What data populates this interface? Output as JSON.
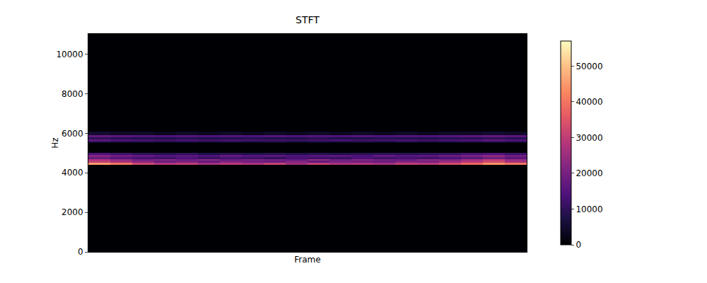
{
  "chart_data": {
    "type": "heatmap",
    "title": "STFT",
    "x_label": "Frame",
    "y_label": "Hz",
    "tick_labels": "y",
    "x": [
      0,
      1,
      2,
      3,
      4,
      5,
      6,
      7,
      8,
      9,
      10,
      11,
      12,
      13,
      14,
      15,
      16,
      17,
      18,
      19
    ],
    "xlim": [
      -0.5,
      19.5
    ],
    "y_edges": [
      0,
      4400,
      4500,
      4600,
      4700,
      4800,
      4900,
      5000,
      5500,
      5600,
      5700,
      5800,
      5900,
      6100,
      11025
    ],
    "ylim": [
      0,
      11025
    ],
    "yticks": [
      0,
      2000,
      4000,
      6000,
      8000,
      10000
    ],
    "cells": [
      [
        0,
        0,
        0,
        0,
        0,
        0,
        0,
        0,
        0,
        0,
        0,
        0,
        0,
        0,
        0,
        0,
        0,
        0,
        0,
        0
      ],
      [
        45000,
        40000,
        32000,
        28000,
        30000,
        26000,
        29000,
        27000,
        31000,
        25000,
        30000,
        27000,
        28000,
        26000,
        30000,
        29000,
        33000,
        38000,
        44000,
        40000
      ],
      [
        30000,
        26000,
        22000,
        18000,
        20000,
        17000,
        21000,
        19000,
        18000,
        22000,
        17000,
        20000,
        19000,
        18000,
        21000,
        20000,
        24000,
        28000,
        32000,
        26000
      ],
      [
        28000,
        24000,
        20000,
        22000,
        19000,
        23000,
        18000,
        21000,
        20000,
        17000,
        24000,
        19000,
        22000,
        20000,
        18000,
        23000,
        21000,
        26000,
        30000,
        25000
      ],
      [
        18000,
        15000,
        13000,
        12000,
        14000,
        11000,
        13000,
        12000,
        10000,
        13000,
        12000,
        11000,
        14000,
        12000,
        13000,
        12000,
        14000,
        16000,
        19000,
        16000
      ],
      [
        22000,
        19000,
        17000,
        15000,
        16000,
        14000,
        17000,
        15000,
        16000,
        14000,
        15000,
        16000,
        14000,
        17000,
        15000,
        16000,
        18000,
        20000,
        23000,
        19000
      ],
      [
        14000,
        12000,
        10000,
        9000,
        10000,
        8000,
        9000,
        8000,
        9000,
        8000,
        9000,
        8000,
        9000,
        10000,
        9000,
        10000,
        11000,
        13000,
        14000,
        12000
      ],
      [
        0,
        0,
        0,
        0,
        0,
        0,
        0,
        0,
        0,
        0,
        0,
        0,
        0,
        0,
        0,
        0,
        0,
        0,
        0,
        0
      ],
      [
        6000,
        5000,
        5000,
        4000,
        5000,
        4000,
        5000,
        4000,
        5000,
        4000,
        5000,
        4000,
        5000,
        4000,
        5000,
        4000,
        5000,
        5000,
        6000,
        5000
      ],
      [
        16000,
        14000,
        13000,
        12000,
        13000,
        12000,
        13000,
        12000,
        12000,
        11000,
        12000,
        13000,
        12000,
        12000,
        13000,
        12000,
        13000,
        14000,
        16000,
        14000
      ],
      [
        10000,
        9000,
        8000,
        8000,
        9000,
        8000,
        8000,
        9000,
        8000,
        8000,
        9000,
        8000,
        8000,
        9000,
        8000,
        8000,
        9000,
        9000,
        10000,
        9000
      ],
      [
        17000,
        16000,
        15000,
        14000,
        15000,
        14000,
        15000,
        14000,
        15000,
        14000,
        15000,
        14000,
        15000,
        14000,
        15000,
        14000,
        15000,
        16000,
        17000,
        16000
      ],
      [
        5000,
        4000,
        4000,
        3000,
        4000,
        3000,
        4000,
        3000,
        4000,
        3000,
        4000,
        3000,
        4000,
        3000,
        4000,
        3000,
        4000,
        4000,
        5000,
        4000
      ],
      [
        0,
        0,
        0,
        0,
        0,
        0,
        0,
        0,
        0,
        0,
        0,
        0,
        0,
        0,
        0,
        0,
        0,
        0,
        0,
        0
      ]
    ],
    "colorbar_range": [
      0,
      57000
    ],
    "colorbar_ticks": [
      0,
      10000,
      20000,
      30000,
      40000,
      50000
    ]
  }
}
